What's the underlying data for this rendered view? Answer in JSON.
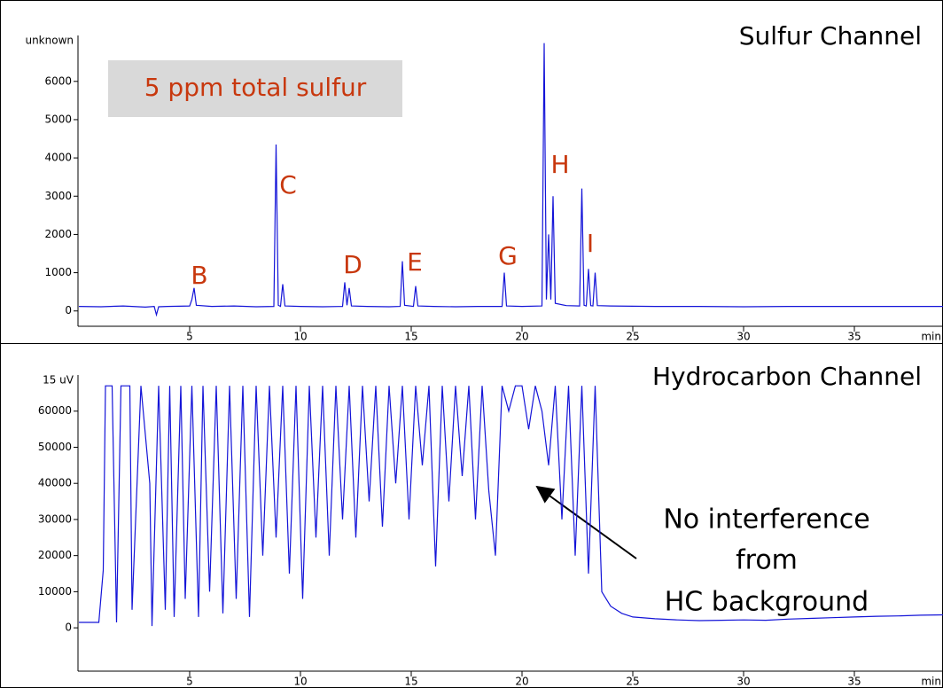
{
  "chart_data": [
    {
      "type": "line",
      "title": "Sulfur Channel",
      "y_label": "unknown",
      "x_label": "min",
      "color": "#1414d8",
      "annotations": [
        "5 ppm total sulfur",
        "B",
        "C",
        "D",
        "E",
        "G",
        "H",
        "I"
      ],
      "xlim": [
        0,
        39
      ],
      "xticks": [
        5,
        10,
        15,
        20,
        25,
        30,
        35
      ],
      "ylim": [
        -400,
        7200
      ],
      "yticks": [
        0,
        1000,
        2000,
        3000,
        4000,
        5000,
        6000
      ],
      "x": [
        0,
        1,
        2,
        3,
        3.4,
        3.5,
        3.6,
        4,
        5,
        5.1,
        5.2,
        5.3,
        6,
        7,
        8,
        8.8,
        8.9,
        9.0,
        9.1,
        9.2,
        9.3,
        10,
        11,
        11.9,
        12.0,
        12.1,
        12.2,
        12.3,
        13,
        14,
        14.5,
        14.6,
        14.7,
        15.1,
        15.2,
        15.3,
        16,
        17,
        18,
        19.1,
        19.2,
        19.3,
        20,
        20.9,
        21.0,
        21.1,
        21.2,
        21.3,
        21.4,
        21.5,
        22,
        22.6,
        22.7,
        22.8,
        22.9,
        23.0,
        23.1,
        23.2,
        23.3,
        23.4,
        24,
        26,
        28,
        30,
        32,
        34,
        36,
        38,
        39
      ],
      "values": [
        120,
        110,
        130,
        100,
        120,
        -100,
        110,
        120,
        130,
        300,
        600,
        150,
        120,
        130,
        110,
        120,
        4350,
        150,
        120,
        700,
        130,
        120,
        110,
        120,
        750,
        150,
        600,
        130,
        120,
        110,
        120,
        1300,
        150,
        120,
        650,
        130,
        120,
        110,
        120,
        120,
        1000,
        130,
        120,
        130,
        7000,
        300,
        2000,
        300,
        3000,
        200,
        140,
        130,
        3200,
        150,
        130,
        1100,
        140,
        130,
        1000,
        140,
        130,
        120,
        120,
        110,
        120,
        120,
        120,
        120,
        120
      ]
    },
    {
      "type": "line",
      "title": "Hydrocarbon Channel",
      "y_label": "15 uV",
      "x_label": "min",
      "color": "#1414d8",
      "annotations": [
        "No interference",
        "from",
        "HC  background"
      ],
      "xlim": [
        0,
        39
      ],
      "xticks": [
        5,
        10,
        15,
        20,
        25,
        30,
        35
      ],
      "ylim": [
        -12000,
        70000
      ],
      "yticks": [
        0,
        10000,
        20000,
        30000,
        40000,
        50000,
        60000
      ],
      "x": [
        0,
        0.9,
        1.1,
        1.2,
        1.5,
        1.7,
        1.9,
        2.3,
        2.4,
        2.8,
        3.2,
        3.3,
        3.6,
        3.9,
        4.1,
        4.3,
        4.6,
        4.8,
        5.1,
        5.4,
        5.6,
        5.9,
        6.2,
        6.5,
        6.8,
        7.1,
        7.4,
        7.7,
        8.0,
        8.3,
        8.6,
        8.9,
        9.2,
        9.5,
        9.8,
        10.1,
        10.4,
        10.7,
        11.0,
        11.3,
        11.6,
        11.9,
        12.2,
        12.5,
        12.8,
        13.1,
        13.4,
        13.7,
        14.0,
        14.3,
        14.6,
        14.9,
        15.2,
        15.5,
        15.8,
        16.1,
        16.4,
        16.7,
        17.0,
        17.3,
        17.6,
        17.9,
        18.2,
        18.5,
        18.8,
        19.1,
        19.4,
        19.7,
        20.0,
        20.3,
        20.6,
        20.9,
        21.2,
        21.5,
        21.8,
        22.1,
        22.4,
        22.7,
        23.0,
        23.3,
        23.6,
        24.0,
        24.5,
        25.0,
        26,
        27,
        28,
        29,
        30,
        31,
        32,
        33,
        34,
        35,
        36,
        37,
        38,
        39
      ],
      "values": [
        1500,
        1500,
        16000,
        67000,
        67000,
        1500,
        67000,
        67000,
        5000,
        67000,
        40000,
        500,
        67000,
        5000,
        67000,
        3000,
        67000,
        8000,
        67000,
        3000,
        67000,
        10000,
        67000,
        4000,
        67000,
        8000,
        67000,
        3000,
        67000,
        20000,
        67000,
        25000,
        67000,
        15000,
        67000,
        8000,
        67000,
        25000,
        67000,
        20000,
        67000,
        30000,
        67000,
        25000,
        67000,
        35000,
        67000,
        28000,
        67000,
        40000,
        67000,
        30000,
        67000,
        45000,
        67000,
        17000,
        67000,
        35000,
        67000,
        42000,
        67000,
        30000,
        67000,
        38000,
        20000,
        67000,
        60000,
        67000,
        67000,
        55000,
        67000,
        60000,
        45000,
        67000,
        30000,
        67000,
        20000,
        67000,
        15000,
        67000,
        10000,
        6000,
        4000,
        3000,
        2500,
        2200,
        2000,
        2100,
        2200,
        2100,
        2400,
        2600,
        2800,
        3000,
        3200,
        3300,
        3500,
        3600
      ]
    }
  ]
}
